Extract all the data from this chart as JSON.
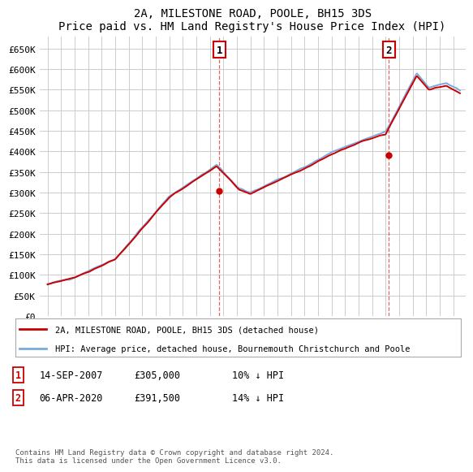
{
  "title": "2A, MILESTONE ROAD, POOLE, BH15 3DS",
  "subtitle": "Price paid vs. HM Land Registry's House Price Index (HPI)",
  "hpi_label": "HPI: Average price, detached house, Bournemouth Christchurch and Poole",
  "property_label": "2A, MILESTONE ROAD, POOLE, BH15 3DS (detached house)",
  "ylim": [
    0,
    680000
  ],
  "yticks": [
    0,
    50000,
    100000,
    150000,
    200000,
    250000,
    300000,
    350000,
    400000,
    450000,
    500000,
    550000,
    600000,
    650000
  ],
  "ytick_labels": [
    "£0",
    "£50K",
    "£100K",
    "£150K",
    "£200K",
    "£250K",
    "£300K",
    "£350K",
    "£400K",
    "£450K",
    "£500K",
    "£550K",
    "£600K",
    "£650K"
  ],
  "hpi_color": "#7aaadd",
  "property_color": "#cc0000",
  "background_color": "#ffffff",
  "grid_color": "#cccccc",
  "sale1_x": 2007.71,
  "sale1_price": 305000,
  "sale2_x": 2020.25,
  "sale2_price": 391500,
  "footnote": "Contains HM Land Registry data © Crown copyright and database right 2024.\nThis data is licensed under the Open Government Licence v3.0.",
  "row1_date": "14-SEP-2007",
  "row1_price": "£305,000",
  "row1_note": "10% ↓ HPI",
  "row2_date": "06-APR-2020",
  "row2_price": "£391,500",
  "row2_note": "14% ↓ HPI"
}
